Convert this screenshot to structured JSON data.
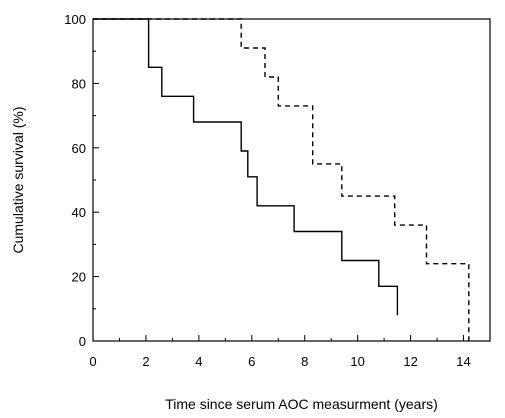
{
  "chart_data": {
    "type": "line",
    "xlabel": "Time since serum AOC measurment (years)",
    "ylabel": "Cumulative survival (%)",
    "xlim": [
      0,
      15
    ],
    "ylim": [
      0,
      100
    ],
    "x_ticks": [
      0,
      2,
      4,
      6,
      8,
      10,
      12,
      14
    ],
    "y_ticks": [
      0,
      20,
      40,
      60,
      80,
      100
    ],
    "grid": false,
    "series": [
      {
        "style": "solid",
        "color": "#000000",
        "points": [
          [
            0,
            100
          ],
          [
            2.1,
            100
          ],
          [
            2.1,
            85
          ],
          [
            2.6,
            85
          ],
          [
            2.6,
            76
          ],
          [
            3.8,
            76
          ],
          [
            3.8,
            68
          ],
          [
            5.6,
            68
          ],
          [
            5.6,
            59
          ],
          [
            5.85,
            59
          ],
          [
            5.85,
            51
          ],
          [
            6.2,
            51
          ],
          [
            6.2,
            42
          ],
          [
            7.6,
            42
          ],
          [
            7.6,
            34
          ],
          [
            9.4,
            34
          ],
          [
            9.4,
            25
          ],
          [
            10.8,
            25
          ],
          [
            10.8,
            17
          ],
          [
            11.5,
            17
          ],
          [
            11.5,
            8
          ]
        ]
      },
      {
        "style": "dashed",
        "color": "#000000",
        "points": [
          [
            0,
            100
          ],
          [
            5.6,
            100
          ],
          [
            5.6,
            91
          ],
          [
            6.5,
            91
          ],
          [
            6.5,
            82
          ],
          [
            7.0,
            82
          ],
          [
            7.0,
            73
          ],
          [
            8.3,
            73
          ],
          [
            8.3,
            55
          ],
          [
            9.4,
            55
          ],
          [
            9.4,
            45
          ],
          [
            11.4,
            45
          ],
          [
            11.4,
            36
          ],
          [
            12.6,
            36
          ],
          [
            12.6,
            24
          ],
          [
            14.2,
            24
          ],
          [
            14.2,
            0
          ]
        ]
      }
    ]
  }
}
